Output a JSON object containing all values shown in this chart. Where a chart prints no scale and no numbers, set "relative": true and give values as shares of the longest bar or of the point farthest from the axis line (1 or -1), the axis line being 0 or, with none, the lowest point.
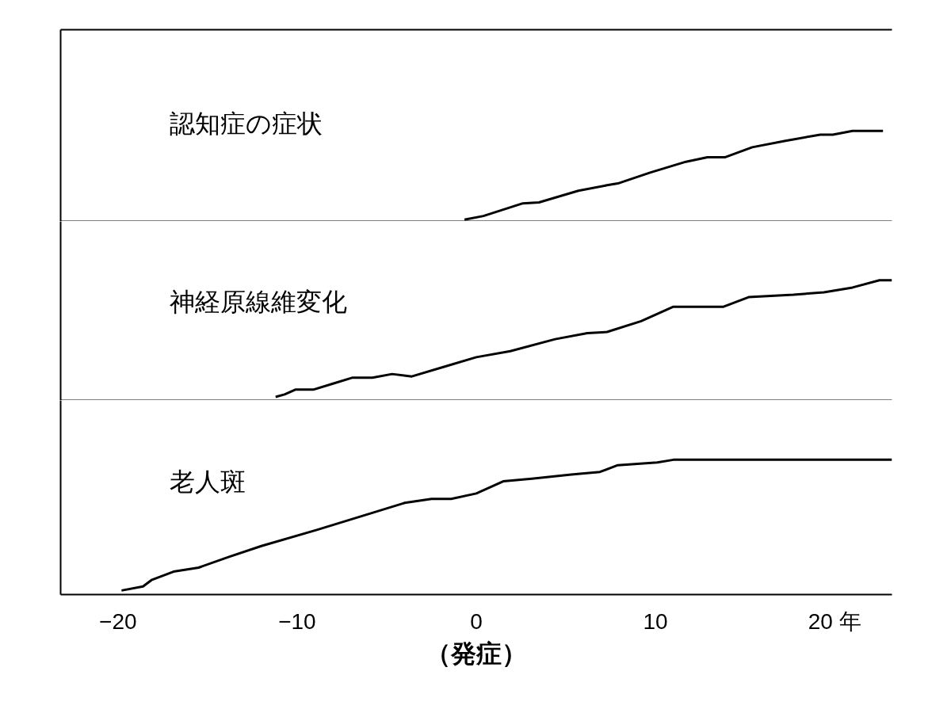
{
  "chart_data": [
    {
      "type": "line",
      "relative": true,
      "annotations": [
        "認知症の症状"
      ],
      "tick_labels": false,
      "xlim": [
        -23.2,
        23.2
      ],
      "series": [
        {
          "color": "#000000",
          "x": [
            -0.66,
            0.4,
            2.6,
            3.5,
            5.7,
            7.3,
            7.9,
            9.7,
            11.7,
            12.9,
            13.9,
            15.4,
            17.2,
            19.2,
            19.9,
            21.0,
            22.7
          ],
          "values": [
            0.02,
            0.06,
            0.2,
            0.21,
            0.34,
            0.4,
            0.42,
            0.54,
            0.66,
            0.71,
            0.71,
            0.82,
            0.89,
            0.96,
            0.96,
            1,
            1
          ]
        }
      ]
    },
    {
      "type": "line",
      "relative": true,
      "annotations": [
        "神経原線維変化"
      ],
      "tick_labels": false,
      "xlim": [
        -23.2,
        23.2
      ],
      "series": [
        {
          "color": "#000000",
          "x": [
            -11.2,
            -10.7,
            -10.1,
            -9.1,
            -8.0,
            -6.9,
            -5.8,
            -4.7,
            -3.6,
            -1.8,
            0,
            1.9,
            4.4,
            6.2,
            7.3,
            9.2,
            11.0,
            12.3,
            13.8,
            15.2,
            17.7,
            19.4,
            21.0,
            22.5,
            23.2
          ],
          "values": [
            0.03,
            0.05,
            0.09,
            0.09,
            0.14,
            0.19,
            0.19,
            0.22,
            0.2,
            0.28,
            0.36,
            0.41,
            0.51,
            0.56,
            0.57,
            0.66,
            0.78,
            0.78,
            0.78,
            0.86,
            0.88,
            0.9,
            0.94,
            1,
            1
          ]
        }
      ]
    },
    {
      "type": "line",
      "relative": true,
      "annotations": [
        "老人斑"
      ],
      "tick_labels": "x",
      "xlim": [
        -23.2,
        23.2
      ],
      "xticks": [
        -20,
        -10,
        0,
        10,
        {
          "value": 20,
          "label": "20 年"
        }
      ],
      "xlabel": "（発症）",
      "series": [
        {
          "color": "#000000",
          "x": [
            -19.8,
            -18.6,
            -18.1,
            -16.9,
            -15.5,
            -13.8,
            -12.0,
            -8.9,
            -6.2,
            -4.0,
            -2.5,
            -1.4,
            0,
            1.5,
            3.1,
            5.3,
            6.9,
            7.9,
            10.1,
            11.0,
            23.2
          ],
          "values": [
            0.03,
            0.06,
            0.11,
            0.17,
            0.2,
            0.28,
            0.36,
            0.48,
            0.59,
            0.68,
            0.71,
            0.71,
            0.75,
            0.84,
            0.86,
            0.89,
            0.91,
            0.96,
            0.98,
            1,
            1
          ]
        }
      ]
    }
  ]
}
